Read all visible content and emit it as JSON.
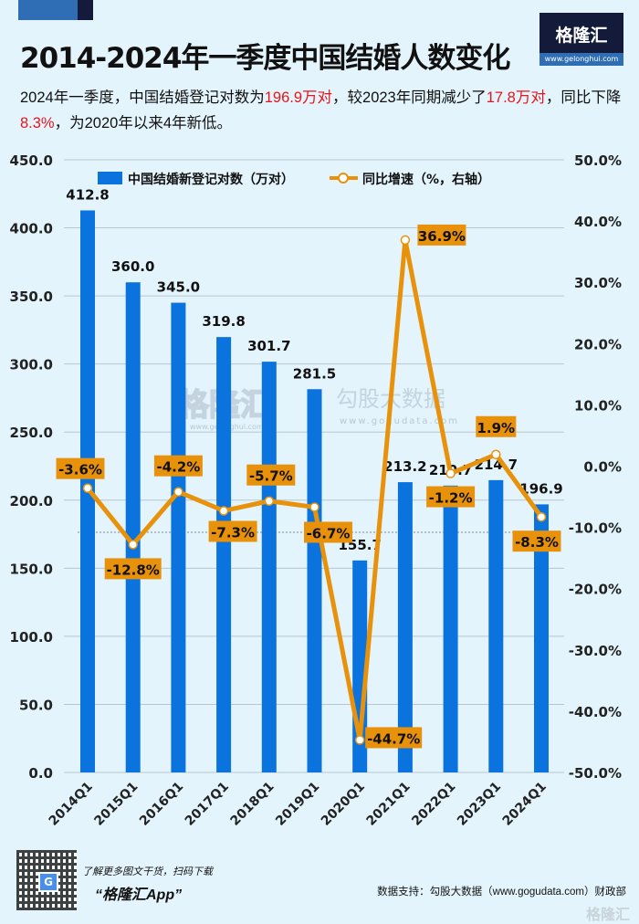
{
  "header": {
    "logo_text": "格隆汇",
    "logo_url": "www.gelonghui.com",
    "title": "2014-2024年一季度中国结婚人数变化",
    "summary": [
      {
        "text": "2024年一季度，中国结婚登记对数为",
        "highlight": false
      },
      {
        "text": "196.9万对",
        "highlight": true
      },
      {
        "text": "，较2023年同期减少了",
        "highlight": false
      },
      {
        "text": "17.8万对",
        "highlight": true
      },
      {
        "text": "，同比下降",
        "highlight": false
      },
      {
        "text": "8.3%",
        "highlight": true
      },
      {
        "text": "，为2020年以来4年新低。",
        "highlight": false
      }
    ]
  },
  "colors": {
    "bar": "#0a73de",
    "line": "#e8920b",
    "highlight": "#e8141b",
    "background": "#e3f4fc"
  },
  "chart_data": {
    "type": "bar+line",
    "categories": [
      "2014Q1",
      "2015Q1",
      "2016Q1",
      "2017Q1",
      "2018Q1",
      "2019Q1",
      "2020Q1",
      "2021Q1",
      "2022Q1",
      "2023Q1",
      "2024Q1"
    ],
    "series": [
      {
        "name": "中国结婚新登记对数（万对）",
        "type": "bar",
        "axis": "left",
        "values": [
          412.8,
          360.0,
          345.0,
          319.8,
          301.7,
          281.5,
          155.7,
          213.2,
          210.7,
          214.7,
          196.9
        ],
        "labels": [
          "412.8",
          "360.0",
          "345.0",
          "319.8",
          "301.7",
          "281.5",
          "155.7",
          "213.2",
          "210.7",
          "214.7",
          "196.9"
        ]
      },
      {
        "name": "同比增速（%，右轴）",
        "type": "line",
        "axis": "right",
        "values": [
          -3.6,
          -12.8,
          -4.2,
          -7.3,
          -5.7,
          -6.7,
          -44.7,
          36.9,
          -1.2,
          1.9,
          -8.3
        ],
        "labels": [
          "-3.6%",
          "-12.8%",
          "-4.2%",
          "-7.3%",
          "-5.7%",
          "-6.7%",
          "-44.7%",
          "36.9%",
          "-1.2%",
          "1.9%",
          "-8.3%"
        ]
      }
    ],
    "left_axis": {
      "ylim": [
        0,
        450
      ],
      "ticks": [
        "0.0",
        "50.0",
        "100.0",
        "150.0",
        "200.0",
        "250.0",
        "300.0",
        "350.0",
        "400.0",
        "450.0"
      ]
    },
    "right_axis": {
      "ylim": [
        -50,
        50
      ],
      "ticks": [
        "-50.0%",
        "-40.0%",
        "-30.0%",
        "-20.0%",
        "-10.0%",
        "0.0%",
        "10.0%",
        "20.0%",
        "30.0%",
        "40.0%",
        "50.0%"
      ]
    },
    "grid": true,
    "legend": "top"
  },
  "watermark": {
    "brand": "格隆汇",
    "brand_url": "www.gelonghui.com",
    "data_brand": "勾股大数据",
    "data_url": "www.gogudata.com"
  },
  "footer": {
    "promo": "了解更多图文干货，扫码下载",
    "app": "“格隆汇App”",
    "source": "数据支持：勾股大数据（www.gogudata.com）财政部",
    "corner_logo": "格隆汇"
  }
}
